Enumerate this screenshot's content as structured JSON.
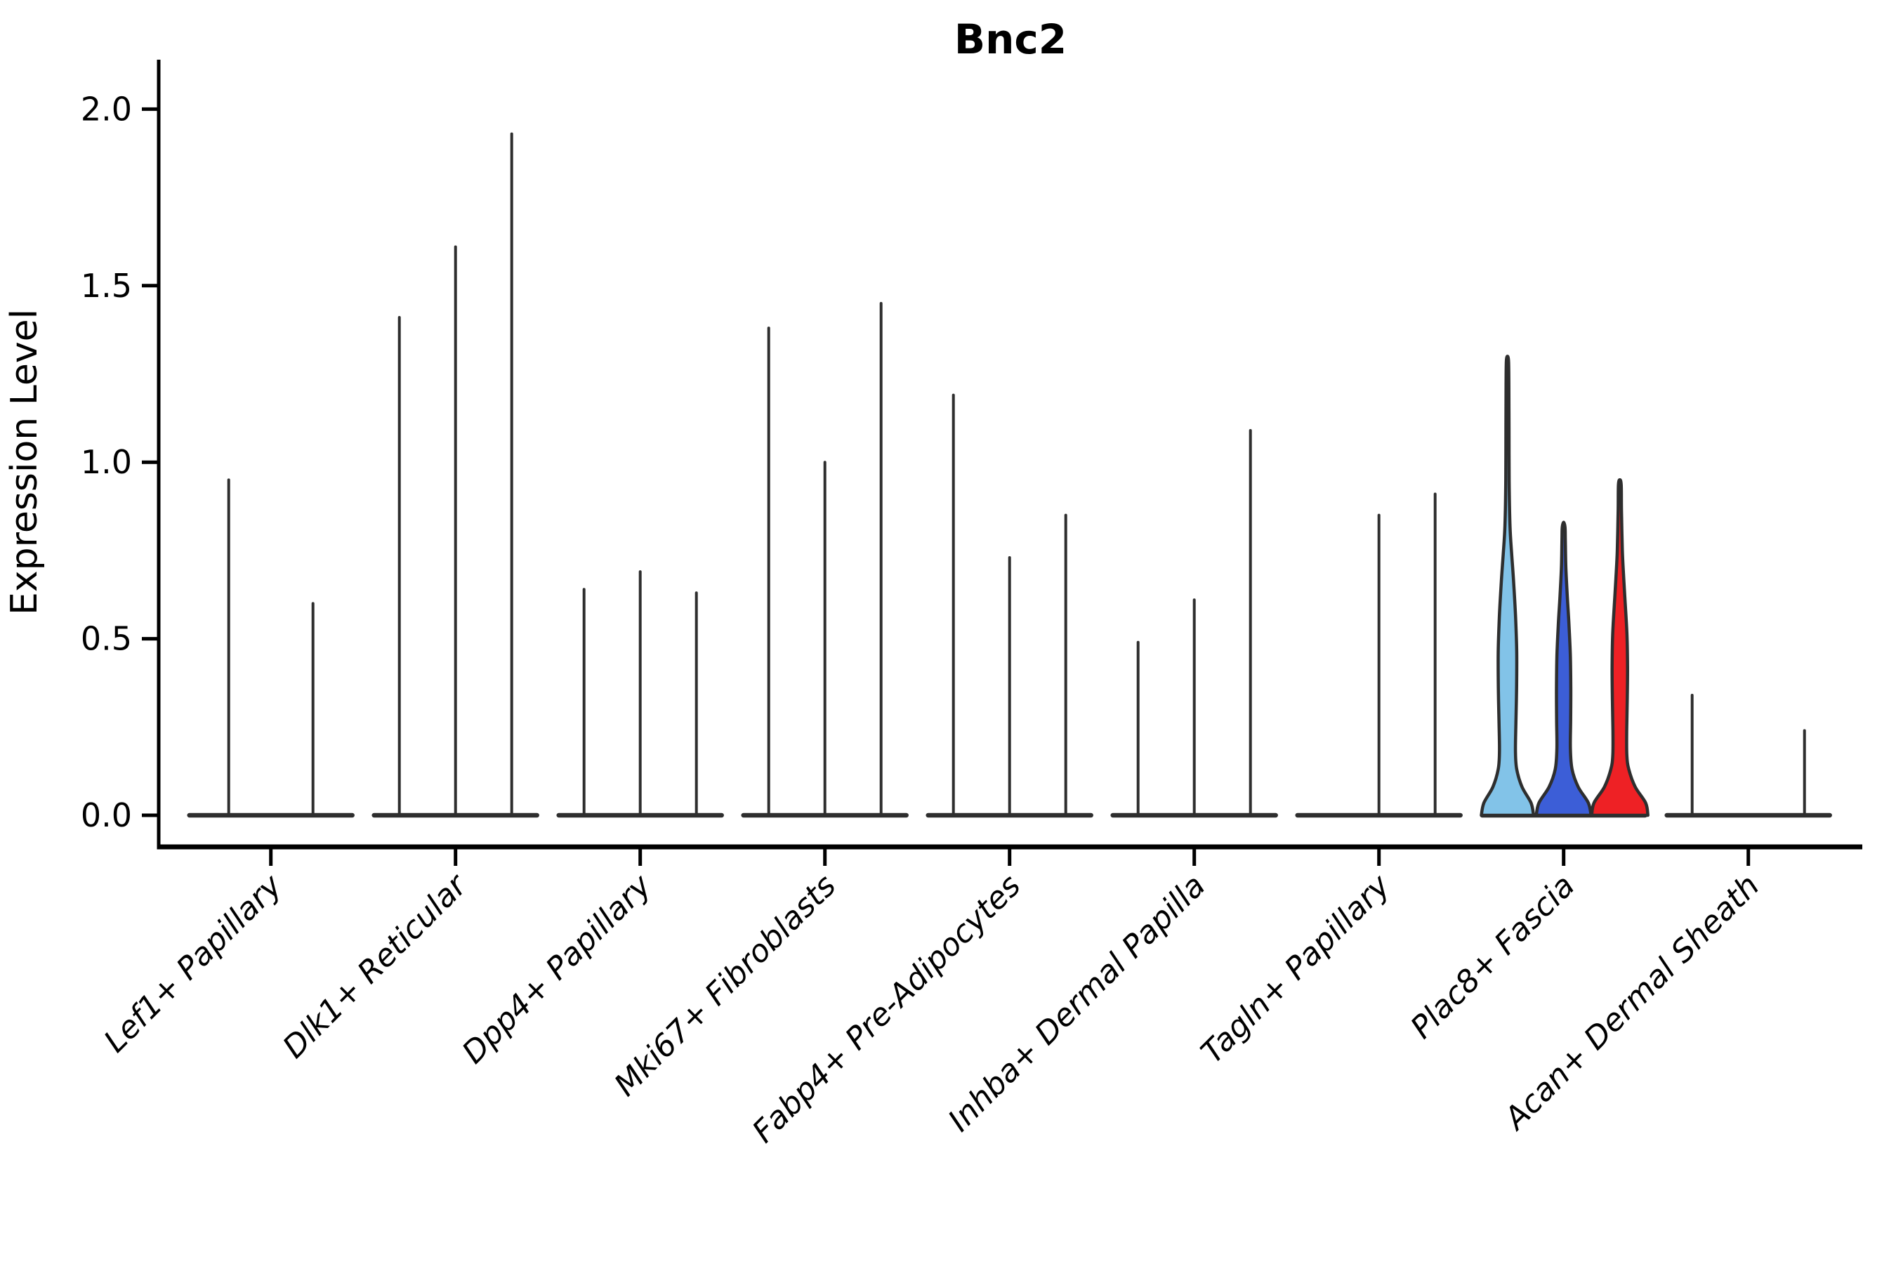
{
  "title": "Bnc2",
  "ylabel": "Expression Level",
  "colors": {
    "background": "#ffffff",
    "violin_outline": "#2e2e2e",
    "axis": "#000000",
    "plac8_fascia_sample1": "#82c3e8",
    "plac8_fascia_sample2": "#3c5ed7",
    "plac8_fascia_sample3": "#ee2125"
  },
  "chart_data": {
    "type": "violin",
    "title": "Bnc2",
    "xlabel": "",
    "ylabel": "Expression Level",
    "ylim": [
      -0.09,
      2.05
    ],
    "grid": false,
    "legend": "none",
    "yticks": [
      {
        "v": 0.0,
        "label": "0.0"
      },
      {
        "v": 0.5,
        "label": "0.5"
      },
      {
        "v": 1.0,
        "label": "1.0"
      },
      {
        "v": 1.5,
        "label": "1.5"
      },
      {
        "v": 2.0,
        "label": "2.0"
      }
    ],
    "categories": [
      "Lef1+ Papillary",
      "Dlk1+ Reticular",
      "Dpp4+ Papillary",
      "Mki67+ Fibroblasts",
      "Fabp4+ Pre-Adipocytes",
      "Inhba+ Dermal Papilla",
      "Tagln+ Papillary",
      "Plac8+ Fascia",
      "Acan+ Dermal Sheath"
    ],
    "groups": [
      {
        "category": "Lef1+ Papillary",
        "violins": [
          {
            "max": 0.95,
            "fill": null
          },
          {
            "max": 0.6,
            "fill": null
          }
        ]
      },
      {
        "category": "Dlk1+ Reticular",
        "violins": [
          {
            "max": 1.41,
            "fill": null
          },
          {
            "max": 1.61,
            "fill": null
          },
          {
            "max": 1.93,
            "fill": null
          }
        ]
      },
      {
        "category": "Dpp4+ Papillary",
        "violins": [
          {
            "max": 0.64,
            "fill": null
          },
          {
            "max": 0.69,
            "fill": null
          },
          {
            "max": 0.63,
            "fill": null
          }
        ]
      },
      {
        "category": "Mki67+ Fibroblasts",
        "violins": [
          {
            "max": 1.38,
            "fill": null
          },
          {
            "max": 1.0,
            "fill": null
          },
          {
            "max": 1.45,
            "fill": null
          }
        ]
      },
      {
        "category": "Fabp4+ Pre-Adipocytes",
        "violins": [
          {
            "max": 1.19,
            "fill": null
          },
          {
            "max": 0.73,
            "fill": null
          },
          {
            "max": 0.85,
            "fill": null
          }
        ]
      },
      {
        "category": "Inhba+ Dermal Papilla",
        "violins": [
          {
            "max": 0.49,
            "fill": null
          },
          {
            "max": 0.61,
            "fill": null
          },
          {
            "max": 1.09,
            "fill": null
          }
        ]
      },
      {
        "category": "Tagln+ Papillary",
        "violins": [
          {
            "max": 0.0,
            "fill": null
          },
          {
            "max": 0.85,
            "fill": null
          },
          {
            "max": 0.91,
            "fill": null
          }
        ]
      },
      {
        "category": "Plac8+ Fascia",
        "violins": [
          {
            "max": 1.3,
            "fill": "#82c3e8",
            "profile": [
              [
                0.0,
                0.93
              ],
              [
                0.035,
                0.84
              ],
              [
                0.08,
                0.52
              ],
              [
                0.13,
                0.33
              ],
              [
                0.18,
                0.285
              ],
              [
                0.26,
                0.3
              ],
              [
                0.36,
                0.325
              ],
              [
                0.46,
                0.33
              ],
              [
                0.56,
                0.29
              ],
              [
                0.66,
                0.22
              ],
              [
                0.74,
                0.15
              ],
              [
                0.82,
                0.09
              ],
              [
                0.95,
                0.06
              ],
              [
                1.1,
                0.055
              ],
              [
                1.22,
                0.05
              ],
              [
                1.285,
                0.04
              ],
              [
                1.3,
                0.0
              ]
            ]
          },
          {
            "max": 0.83,
            "fill": "#3c5ed7",
            "profile": [
              [
                0.0,
                0.975
              ],
              [
                0.035,
                0.88
              ],
              [
                0.08,
                0.52
              ],
              [
                0.13,
                0.3
              ],
              [
                0.19,
                0.24
              ],
              [
                0.27,
                0.25
              ],
              [
                0.36,
                0.255
              ],
              [
                0.45,
                0.24
              ],
              [
                0.54,
                0.19
              ],
              [
                0.62,
                0.13
              ],
              [
                0.7,
                0.08
              ],
              [
                0.78,
                0.06
              ],
              [
                0.815,
                0.05
              ],
              [
                0.83,
                0.0
              ]
            ]
          },
          {
            "max": 0.95,
            "fill": "#ee2125",
            "profile": [
              [
                0.0,
                1.0
              ],
              [
                0.035,
                0.92
              ],
              [
                0.08,
                0.55
              ],
              [
                0.13,
                0.32
              ],
              [
                0.17,
                0.25
              ],
              [
                0.24,
                0.245
              ],
              [
                0.33,
                0.265
              ],
              [
                0.42,
                0.275
              ],
              [
                0.51,
                0.255
              ],
              [
                0.59,
                0.2
              ],
              [
                0.67,
                0.14
              ],
              [
                0.75,
                0.09
              ],
              [
                0.86,
                0.06
              ],
              [
                0.935,
                0.05
              ],
              [
                0.95,
                0.0
              ]
            ]
          }
        ]
      },
      {
        "category": "Acan+ Dermal Sheath",
        "violins": [
          {
            "max": 0.34,
            "fill": null
          },
          {
            "max": 0.0,
            "fill": null
          },
          {
            "max": 0.24,
            "fill": null
          }
        ]
      }
    ]
  }
}
